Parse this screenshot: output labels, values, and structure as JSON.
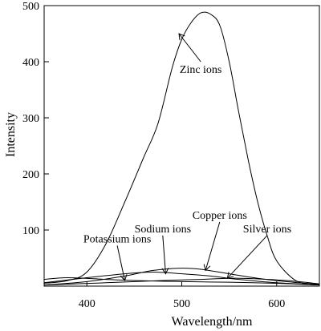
{
  "chart_data": {
    "type": "line",
    "xlabel": "Wavelength/nm",
    "ylabel": "Intensity",
    "xlim": [
      355,
      645
    ],
    "ylim": [
      0,
      500
    ],
    "xticks": [
      400,
      500,
      600
    ],
    "yticks": [
      100,
      200,
      300,
      400,
      500
    ],
    "grid": false,
    "legend": "none",
    "series": [
      {
        "name": "Zinc ions",
        "x": [
          355,
          380,
          400,
          420,
          440,
          460,
          475,
          490,
          500,
          510,
          520,
          530,
          540,
          550,
          560,
          570,
          580,
          590,
          600,
          620,
          640
        ],
        "y": [
          5,
          10,
          25,
          75,
          150,
          230,
          290,
          390,
          440,
          470,
          487,
          485,
          465,
          400,
          310,
          225,
          150,
          90,
          45,
          10,
          2
        ]
      },
      {
        "name": "Copper ions",
        "x": [
          355,
          400,
          440,
          470,
          500,
          520,
          550,
          580,
          610,
          645
        ],
        "y": [
          2,
          8,
          18,
          28,
          32,
          30,
          22,
          14,
          8,
          3
        ]
      },
      {
        "name": "Sodium ions",
        "x": [
          355,
          400,
          440,
          470,
          500,
          530,
          560,
          600,
          645
        ],
        "y": [
          6,
          15,
          22,
          25,
          22,
          18,
          12,
          6,
          2
        ]
      },
      {
        "name": "Potassium ions",
        "x": [
          355,
          380,
          420,
          450,
          500,
          550,
          600,
          645
        ],
        "y": [
          12,
          15,
          12,
          10,
          8,
          7,
          5,
          2
        ]
      },
      {
        "name": "Silver ions",
        "x": [
          355,
          420,
          480,
          520,
          560,
          610,
          645
        ],
        "y": [
          2,
          6,
          10,
          12,
          14,
          10,
          4
        ]
      }
    ],
    "annotations": [
      {
        "text": "Zinc ions",
        "tip_x": 497,
        "tip_y": 450,
        "label_x": 520,
        "label_y": 380
      },
      {
        "text": "Copper ions",
        "tip_x": 525,
        "tip_y": 28,
        "label_x": 540,
        "label_y": 120
      },
      {
        "text": "Sodium ions",
        "tip_x": 483,
        "tip_y": 22,
        "label_x": 480,
        "label_y": 96
      },
      {
        "text": "Silver ions",
        "tip_x": 548,
        "tip_y": 14,
        "label_x": 590,
        "label_y": 96
      },
      {
        "text": "Potassium ions",
        "tip_x": 440,
        "tip_y": 10,
        "label_x": 432,
        "label_y": 78
      }
    ]
  }
}
